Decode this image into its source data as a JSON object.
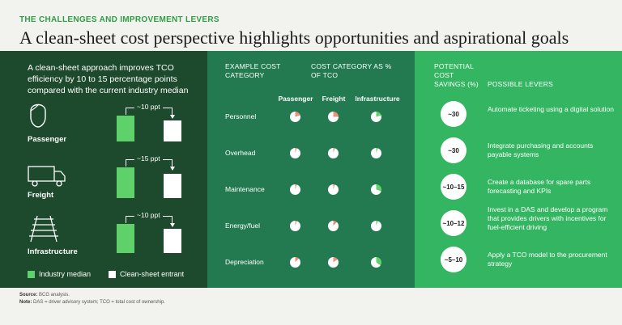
{
  "eyebrow": "THE CHALLENGES AND IMPROVEMENT LEVERS",
  "title": "A clean-sheet cost perspective highlights opportunities and aspirational goals",
  "left_panel": {
    "intro": "A clean-sheet approach improves TCO efficiency by 10 to 15 percentage points compared with the current industry median",
    "segments": [
      {
        "label": "Passenger",
        "gap": "~10 ppt",
        "icon": "person-icon"
      },
      {
        "label": "Freight",
        "gap": "~15 ppt",
        "icon": "truck-icon"
      },
      {
        "label": "Infrastructure",
        "gap": "~10 ppt",
        "icon": "railway-track-icon"
      }
    ],
    "legend": {
      "industry": "Industry median",
      "clean": "Clean-sheet entrant"
    },
    "colors": {
      "industry": "#5fd16a",
      "clean": "#ffffff"
    }
  },
  "middle_panel": {
    "header_example": "EXAMPLE COST CATEGORY",
    "header_pct": "COST CATEGORY AS % OF TCO",
    "columns": [
      "Passenger",
      "Freight",
      "Infrastructure"
    ],
    "rows": [
      {
        "label": "Personnel",
        "shares": [
          0.2,
          0.25,
          0.2
        ]
      },
      {
        "label": "Overhead",
        "shares": [
          0.05,
          0.05,
          0.05
        ]
      },
      {
        "label": "Maintenance",
        "shares": [
          0.05,
          0.05,
          0.3
        ]
      },
      {
        "label": "Energy/fuel",
        "shares": [
          0.05,
          0.12,
          0.05
        ]
      },
      {
        "label": "Depreciation",
        "shares": [
          0.12,
          0.15,
          0.35
        ]
      }
    ],
    "colors": {
      "passenger": "#e8937a",
      "freight": "#e8937a",
      "infrastructure": "#5fd16a"
    }
  },
  "right_panel": {
    "header_savings": "POTENTIAL COST SAVINGS (%)",
    "header_levers": "POSSIBLE LEVERS",
    "items": [
      {
        "saving": "~30",
        "lever": "Automate ticketing using a digital solution"
      },
      {
        "saving": "~30",
        "lever": "Integrate purchasing and accounts payable systems"
      },
      {
        "saving": "~10–15",
        "lever": "Create a database for spare parts forecasting and KPIs"
      },
      {
        "saving": "~10–12",
        "lever": "Invest in a DAS and develop a program that provides drivers with incentives for fuel-efficient driving"
      },
      {
        "saving": "~5–10",
        "lever": "Apply a TCO model to the procurement strategy"
      }
    ]
  },
  "source": {
    "label": "Source:",
    "text": "BCG analysis.",
    "note_label": "Note:",
    "note": "DAS = driver advisory system; TCO = total cost of ownership."
  }
}
